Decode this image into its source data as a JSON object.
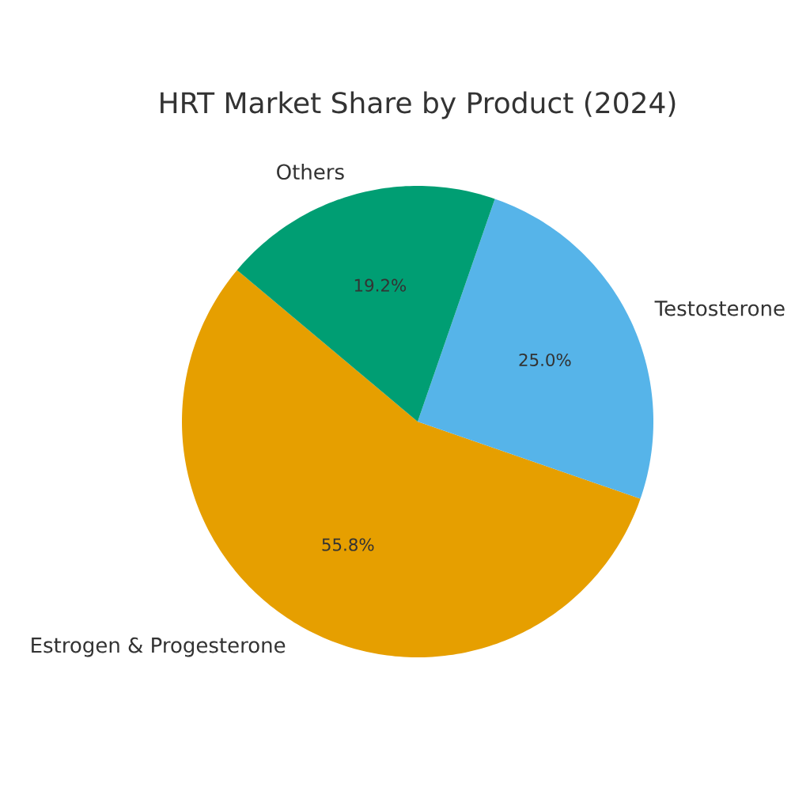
{
  "chart_data": {
    "type": "pie",
    "title": "HRT Market Share by Product (2024)",
    "categories": [
      "Estrogen & Progesterone",
      "Testosterone",
      "Others"
    ],
    "values": [
      55.8,
      25.0,
      19.2
    ],
    "value_labels": [
      "55.8%",
      "25.0%",
      "19.2%"
    ],
    "colors": [
      "#e69f00",
      "#56b4e9",
      "#009e73"
    ]
  }
}
